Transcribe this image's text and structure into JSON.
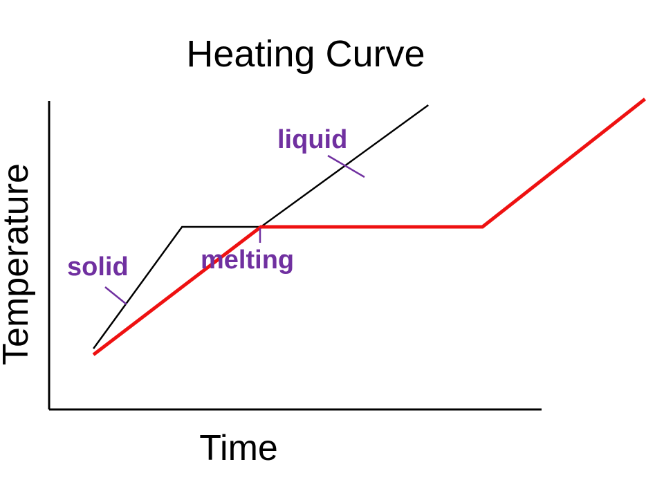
{
  "chart_data": {
    "type": "line",
    "title": "Heating Curve",
    "xlabel": "Time",
    "ylabel": "Temperature",
    "grid": false,
    "legend": "none",
    "xlim": [
      0,
      100
    ],
    "ylim": [
      0,
      100
    ],
    "series": [
      {
        "color": "#000000",
        "points": [
          [
            9,
            20
          ],
          [
            27,
            60
          ],
          [
            43,
            60
          ],
          [
            77,
            100
          ]
        ]
      },
      {
        "color": "#ee1111",
        "points": [
          [
            9,
            18
          ],
          [
            43,
            60
          ],
          [
            88,
            60
          ],
          [
            121,
            102
          ]
        ]
      }
    ],
    "annotations": [
      {
        "text": "liquid",
        "color": "#7030a0"
      },
      {
        "text": "melting",
        "color": "#7030a0"
      },
      {
        "text": "solid",
        "color": "#7030a0"
      }
    ]
  }
}
